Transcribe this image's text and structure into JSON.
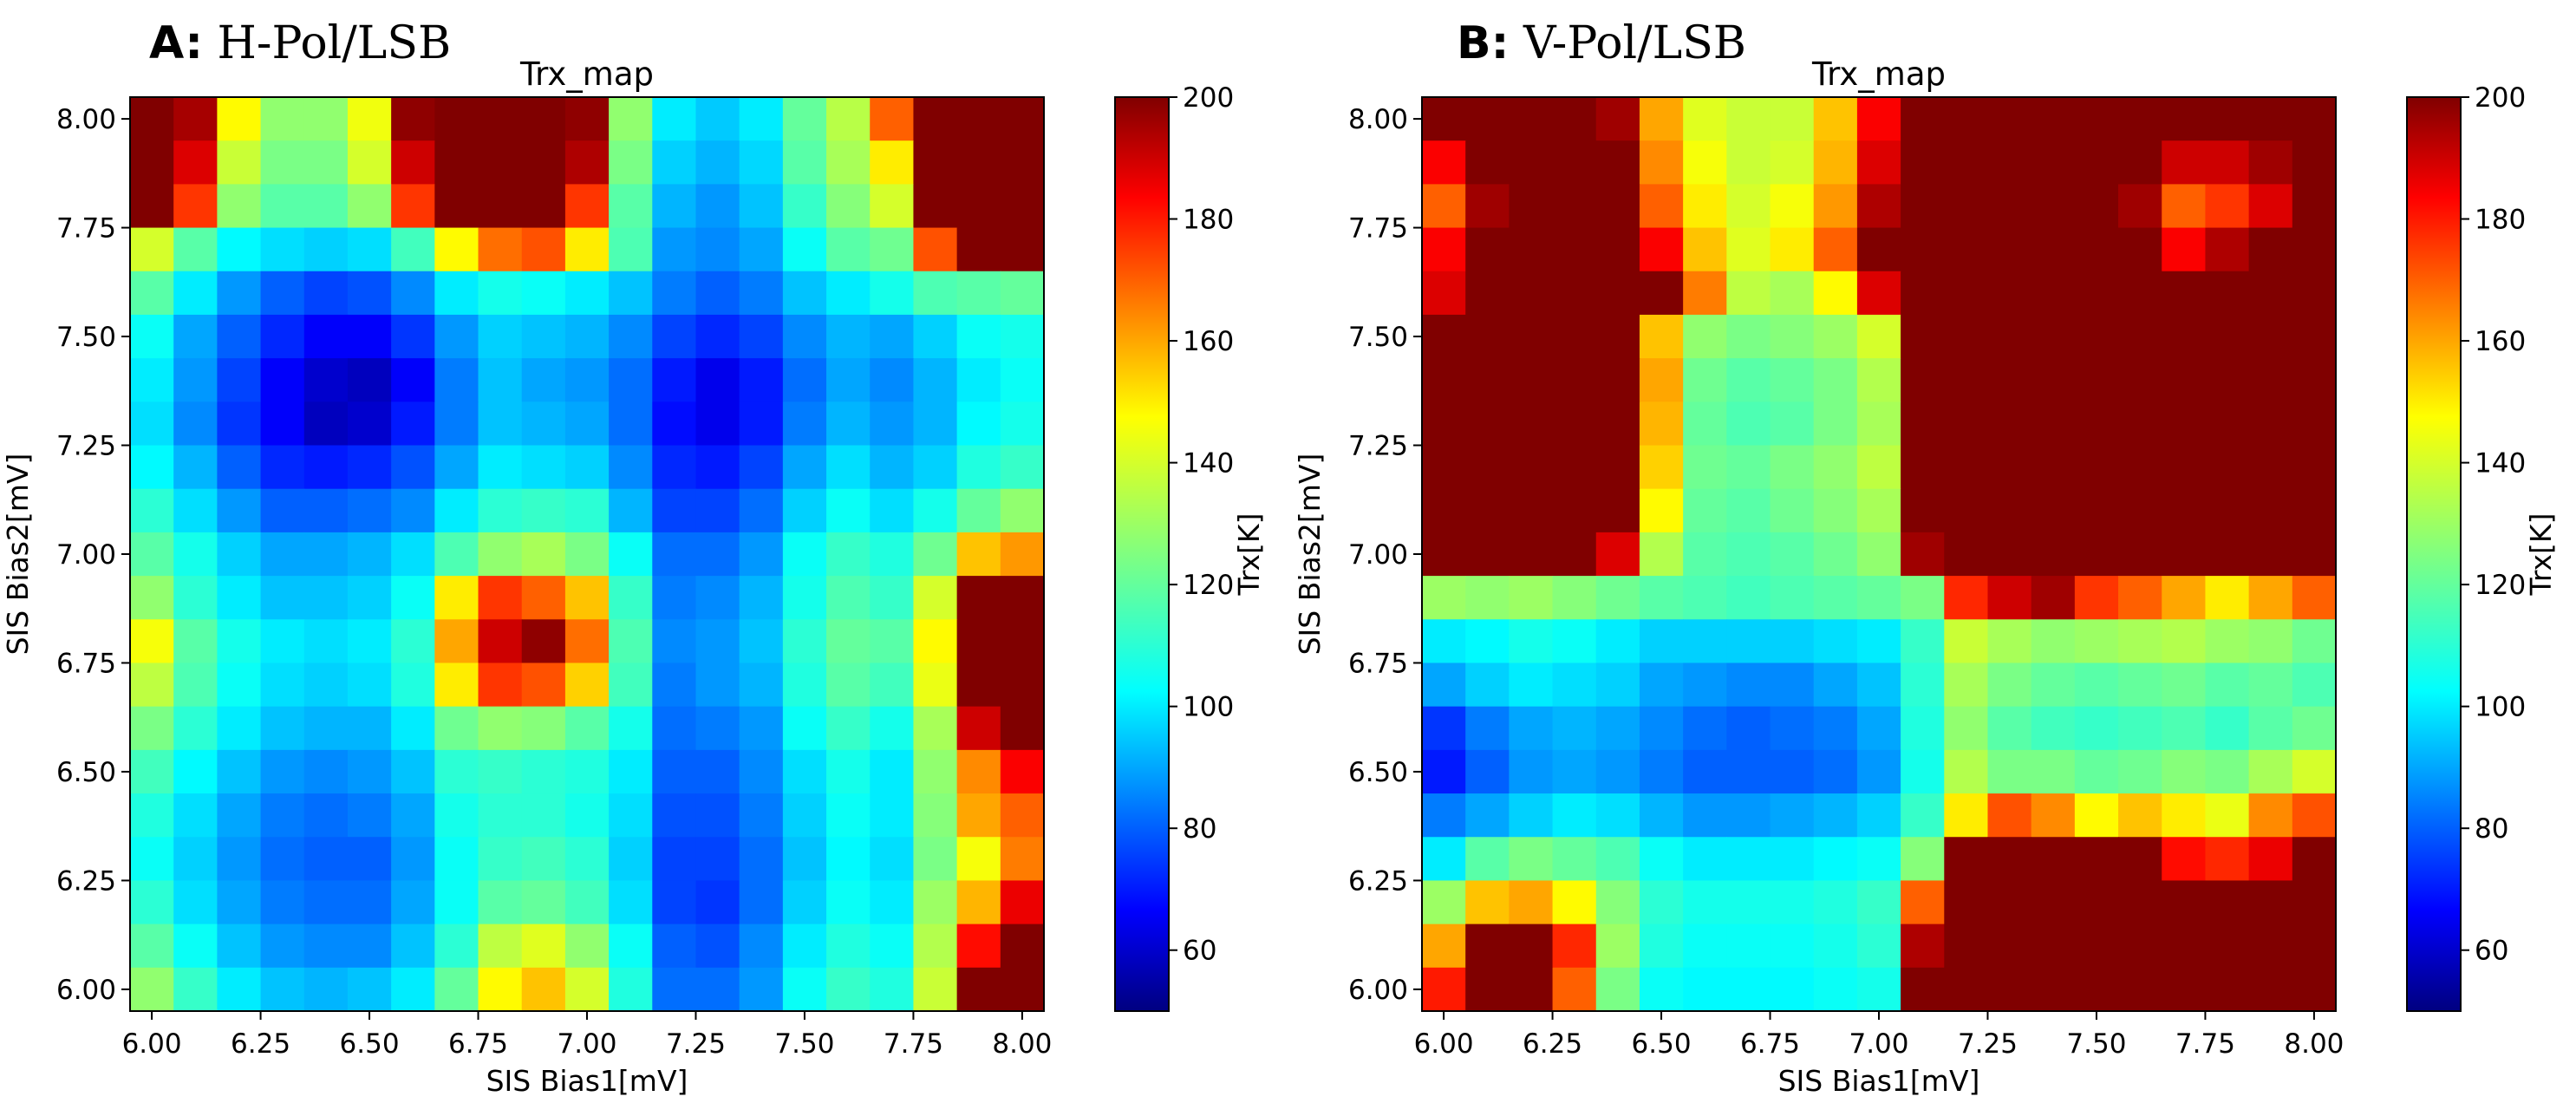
{
  "figure": {
    "panels": [
      {
        "label": "A:",
        "name": "H-Pol/LSB"
      },
      {
        "label": "B:",
        "name": "V-Pol/LSB"
      }
    ]
  },
  "colors": {
    "jet_stops": [
      "#000080",
      "#0000ff",
      "#00ffff",
      "#80ff80",
      "#ffff00",
      "#ff0000",
      "#800000"
    ]
  },
  "chart_data": [
    {
      "type": "heatmap",
      "title": "Trx_map",
      "xlabel": "SIS Bias1[mV]",
      "ylabel": "SIS Bias2[mV]",
      "colorbar_label": "Trx[K]",
      "color_range": [
        50,
        200
      ],
      "colorbar_ticks": [
        "60",
        "80",
        "100",
        "120",
        "140",
        "160",
        "180",
        "200"
      ],
      "colorbar_tick_values": [
        60,
        80,
        100,
        120,
        140,
        160,
        180,
        200
      ],
      "x_range": [
        5.95,
        8.05
      ],
      "y_range": [
        5.95,
        8.05
      ],
      "x_ticks": [
        "6.00",
        "6.25",
        "6.50",
        "6.75",
        "7.00",
        "7.25",
        "7.50",
        "7.75",
        "8.00"
      ],
      "x_tick_values": [
        6.0,
        6.25,
        6.5,
        6.75,
        7.0,
        7.25,
        7.5,
        7.75,
        8.0
      ],
      "y_ticks": [
        "6.00",
        "6.25",
        "6.50",
        "6.75",
        "7.00",
        "7.25",
        "7.50",
        "7.75",
        "8.00"
      ],
      "y_tick_values": [
        6.0,
        6.25,
        6.5,
        6.75,
        7.0,
        7.25,
        7.5,
        7.75,
        8.0
      ],
      "x": [
        6.0,
        6.1,
        6.2,
        6.3,
        6.4,
        6.5,
        6.6,
        6.7,
        6.8,
        6.9,
        7.0,
        7.1,
        7.2,
        7.3,
        7.4,
        7.5,
        7.6,
        7.7,
        7.8,
        7.9,
        8.0
      ],
      "y": [
        8.0,
        7.9,
        7.8,
        7.7,
        7.6,
        7.5,
        7.4,
        7.3,
        7.2,
        7.1,
        7.0,
        6.9,
        6.8,
        6.7,
        6.6,
        6.5,
        6.4,
        6.3,
        6.2,
        6.1,
        6.0
      ],
      "z": [
        [
          200,
          195,
          148,
          128,
          128,
          145,
          198,
          200,
          200,
          200,
          198,
          128,
          100,
          95,
          100,
          120,
          135,
          170,
          200,
          200,
          200
        ],
        [
          200,
          188,
          138,
          124,
          124,
          140,
          190,
          200,
          200,
          200,
          194,
          124,
          96,
          92,
          97,
          118,
          132,
          150,
          200,
          200,
          200
        ],
        [
          200,
          176,
          128,
          118,
          118,
          128,
          176,
          200,
          200,
          200,
          176,
          118,
          92,
          88,
          94,
          112,
          126,
          140,
          200,
          200,
          200
        ],
        [
          140,
          118,
          102,
          98,
          96,
          98,
          114,
          148,
          168,
          172,
          150,
          116,
          88,
          86,
          90,
          104,
          118,
          122,
          172,
          200,
          200
        ],
        [
          118,
          100,
          88,
          80,
          76,
          78,
          86,
          100,
          106,
          104,
          100,
          94,
          84,
          80,
          84,
          94,
          100,
          106,
          116,
          118,
          120
        ],
        [
          104,
          90,
          80,
          72,
          66,
          66,
          74,
          88,
          96,
          94,
          92,
          86,
          76,
          72,
          76,
          86,
          92,
          90,
          96,
          104,
          106
        ],
        [
          100,
          88,
          76,
          66,
          60,
          58,
          66,
          84,
          94,
          90,
          88,
          82,
          70,
          64,
          70,
          82,
          90,
          86,
          92,
          100,
          104
        ],
        [
          98,
          86,
          74,
          66,
          58,
          60,
          70,
          84,
          94,
          92,
          90,
          82,
          68,
          64,
          70,
          84,
          92,
          88,
          92,
          102,
          106
        ],
        [
          102,
          92,
          80,
          72,
          70,
          72,
          78,
          90,
          100,
          98,
          96,
          86,
          72,
          70,
          76,
          90,
          98,
          92,
          96,
          108,
          112
        ],
        [
          110,
          98,
          88,
          80,
          80,
          82,
          86,
          100,
          110,
          112,
          110,
          92,
          76,
          76,
          82,
          96,
          104,
          98,
          106,
          120,
          128
        ],
        [
          118,
          106,
          96,
          90,
          90,
          92,
          98,
          116,
          128,
          132,
          124,
          104,
          82,
          82,
          88,
          104,
          112,
          108,
          122,
          156,
          162
        ],
        [
          128,
          110,
          100,
          94,
          94,
          96,
          104,
          150,
          176,
          170,
          156,
          112,
          84,
          86,
          92,
          106,
          116,
          112,
          140,
          200,
          200
        ],
        [
          146,
          118,
          106,
          100,
          98,
          100,
          110,
          160,
          190,
          198,
          168,
          116,
          86,
          88,
          94,
          110,
          120,
          118,
          148,
          200,
          200
        ],
        [
          136,
          116,
          104,
          98,
          96,
          98,
          108,
          150,
          176,
          172,
          154,
          114,
          84,
          88,
          92,
          108,
          118,
          114,
          144,
          200,
          200
        ],
        [
          124,
          110,
          100,
          94,
          92,
          92,
          100,
          122,
          128,
          126,
          118,
          106,
          82,
          84,
          88,
          104,
          112,
          106,
          132,
          190,
          200
        ],
        [
          114,
          102,
          94,
          88,
          86,
          88,
          94,
          110,
          112,
          110,
          108,
          100,
          80,
          80,
          86,
          98,
          106,
          100,
          128,
          164,
          184
        ],
        [
          108,
          98,
          90,
          84,
          82,
          84,
          90,
          106,
          110,
          110,
          106,
          98,
          78,
          78,
          84,
          96,
          104,
          100,
          126,
          160,
          170
        ],
        [
          104,
          96,
          88,
          82,
          80,
          80,
          88,
          104,
          112,
          114,
          110,
          96,
          76,
          76,
          82,
          94,
          102,
          98,
          124,
          146,
          166
        ],
        [
          110,
          98,
          90,
          84,
          82,
          82,
          90,
          104,
          118,
          120,
          114,
          98,
          76,
          74,
          82,
          96,
          104,
          100,
          130,
          158,
          186
        ],
        [
          118,
          104,
          94,
          88,
          86,
          86,
          94,
          110,
          136,
          142,
          128,
          104,
          80,
          78,
          86,
          100,
          108,
          104,
          134,
          182,
          200
        ],
        [
          128,
          112,
          100,
          94,
          92,
          94,
          100,
          120,
          148,
          156,
          140,
          108,
          82,
          82,
          88,
          104,
          112,
          108,
          138,
          200,
          200
        ]
      ]
    },
    {
      "type": "heatmap",
      "title": "Trx_map",
      "xlabel": "SIS Bias1[mV]",
      "ylabel": "SIS Bias2[mV]",
      "colorbar_label": "Trx[K]",
      "color_range": [
        50,
        200
      ],
      "colorbar_ticks": [
        "60",
        "80",
        "100",
        "120",
        "140",
        "160",
        "180",
        "200"
      ],
      "colorbar_tick_values": [
        60,
        80,
        100,
        120,
        140,
        160,
        180,
        200
      ],
      "x_range": [
        5.95,
        8.05
      ],
      "y_range": [
        5.95,
        8.05
      ],
      "x_ticks": [
        "6.00",
        "6.25",
        "6.50",
        "6.75",
        "7.00",
        "7.25",
        "7.50",
        "7.75",
        "8.00"
      ],
      "x_tick_values": [
        6.0,
        6.25,
        6.5,
        6.75,
        7.0,
        7.25,
        7.5,
        7.75,
        8.0
      ],
      "y_ticks": [
        "6.00",
        "6.25",
        "6.50",
        "6.75",
        "7.00",
        "7.25",
        "7.50",
        "7.75",
        "8.00"
      ],
      "y_tick_values": [
        6.0,
        6.25,
        6.5,
        6.75,
        7.0,
        7.25,
        7.5,
        7.75,
        8.0
      ],
      "x": [
        6.0,
        6.1,
        6.2,
        6.3,
        6.4,
        6.5,
        6.6,
        6.7,
        6.8,
        6.9,
        7.0,
        7.1,
        7.2,
        7.3,
        7.4,
        7.5,
        7.6,
        7.7,
        7.8,
        7.9,
        8.0
      ],
      "y": [
        8.0,
        7.9,
        7.8,
        7.7,
        7.6,
        7.5,
        7.4,
        7.3,
        7.2,
        7.1,
        7.0,
        6.9,
        6.8,
        6.7,
        6.6,
        6.5,
        6.4,
        6.3,
        6.2,
        6.1,
        6.0
      ],
      "z": [
        [
          200,
          200,
          200,
          200,
          196,
          160,
          142,
          138,
          138,
          156,
          184,
          200,
          200,
          200,
          200,
          200,
          200,
          200,
          200,
          200,
          200
        ],
        [
          184,
          200,
          200,
          200,
          200,
          164,
          146,
          138,
          140,
          158,
          188,
          200,
          200,
          200,
          200,
          200,
          200,
          190,
          190,
          196,
          200
        ],
        [
          170,
          196,
          200,
          200,
          200,
          170,
          150,
          140,
          146,
          162,
          194,
          200,
          200,
          200,
          200,
          200,
          196,
          170,
          176,
          188,
          200
        ],
        [
          184,
          200,
          200,
          200,
          200,
          184,
          156,
          142,
          150,
          170,
          200,
          200,
          200,
          200,
          200,
          200,
          200,
          184,
          194,
          200,
          200
        ],
        [
          188,
          200,
          200,
          200,
          200,
          200,
          166,
          136,
          132,
          148,
          188,
          200,
          200,
          200,
          200,
          200,
          200,
          200,
          200,
          200,
          200
        ],
        [
          200,
          200,
          200,
          200,
          200,
          156,
          128,
          124,
          126,
          130,
          140,
          200,
          200,
          200,
          200,
          200,
          200,
          200,
          200,
          200,
          200
        ],
        [
          200,
          200,
          200,
          200,
          200,
          160,
          122,
          118,
          120,
          124,
          134,
          200,
          200,
          200,
          200,
          200,
          200,
          200,
          200,
          200,
          200
        ],
        [
          200,
          200,
          200,
          200,
          200,
          158,
          120,
          116,
          118,
          124,
          132,
          200,
          200,
          200,
          200,
          200,
          200,
          200,
          200,
          200,
          200
        ],
        [
          200,
          200,
          200,
          200,
          200,
          154,
          122,
          120,
          124,
          128,
          136,
          200,
          200,
          200,
          200,
          200,
          200,
          200,
          200,
          200,
          200
        ],
        [
          200,
          200,
          200,
          200,
          200,
          148,
          120,
          118,
          122,
          126,
          132,
          200,
          200,
          200,
          200,
          200,
          200,
          200,
          200,
          200,
          200
        ],
        [
          200,
          200,
          200,
          200,
          188,
          134,
          118,
          116,
          118,
          122,
          128,
          196,
          200,
          200,
          200,
          200,
          200,
          200,
          200,
          200,
          200
        ],
        [
          130,
          128,
          130,
          126,
          122,
          118,
          116,
          114,
          116,
          118,
          120,
          124,
          178,
          190,
          196,
          176,
          170,
          160,
          150,
          160,
          170
        ],
        [
          100,
          102,
          106,
          104,
          100,
          96,
          96,
          96,
          96,
          98,
          100,
          112,
          138,
          132,
          128,
          130,
          132,
          134,
          130,
          128,
          122
        ],
        [
          90,
          96,
          100,
          98,
          96,
          90,
          88,
          86,
          86,
          90,
          94,
          110,
          132,
          124,
          120,
          118,
          120,
          122,
          118,
          120,
          116
        ],
        [
          74,
          84,
          90,
          92,
          90,
          86,
          82,
          80,
          82,
          84,
          90,
          108,
          128,
          118,
          114,
          112,
          114,
          116,
          112,
          118,
          122
        ],
        [
          70,
          80,
          88,
          90,
          88,
          84,
          80,
          80,
          80,
          82,
          88,
          106,
          134,
          124,
          124,
          120,
          122,
          126,
          124,
          132,
          140
        ],
        [
          84,
          90,
          96,
          100,
          98,
          92,
          88,
          88,
          90,
          92,
          96,
          112,
          150,
          172,
          164,
          148,
          156,
          150,
          144,
          164,
          172
        ],
        [
          100,
          118,
          124,
          120,
          116,
          104,
          100,
          100,
          100,
          102,
          104,
          126,
          200,
          200,
          200,
          200,
          200,
          182,
          178,
          186,
          200
        ],
        [
          130,
          156,
          160,
          148,
          126,
          110,
          106,
          106,
          106,
          108,
          112,
          170,
          200,
          200,
          200,
          200,
          200,
          200,
          200,
          200,
          200
        ],
        [
          160,
          200,
          200,
          178,
          130,
          108,
          104,
          104,
          104,
          106,
          110,
          194,
          200,
          200,
          200,
          200,
          200,
          200,
          200,
          200,
          200
        ],
        [
          180,
          200,
          200,
          170,
          124,
          104,
          102,
          102,
          102,
          104,
          106,
          200,
          200,
          200,
          200,
          200,
          200,
          200,
          200,
          200,
          200
        ]
      ]
    }
  ]
}
